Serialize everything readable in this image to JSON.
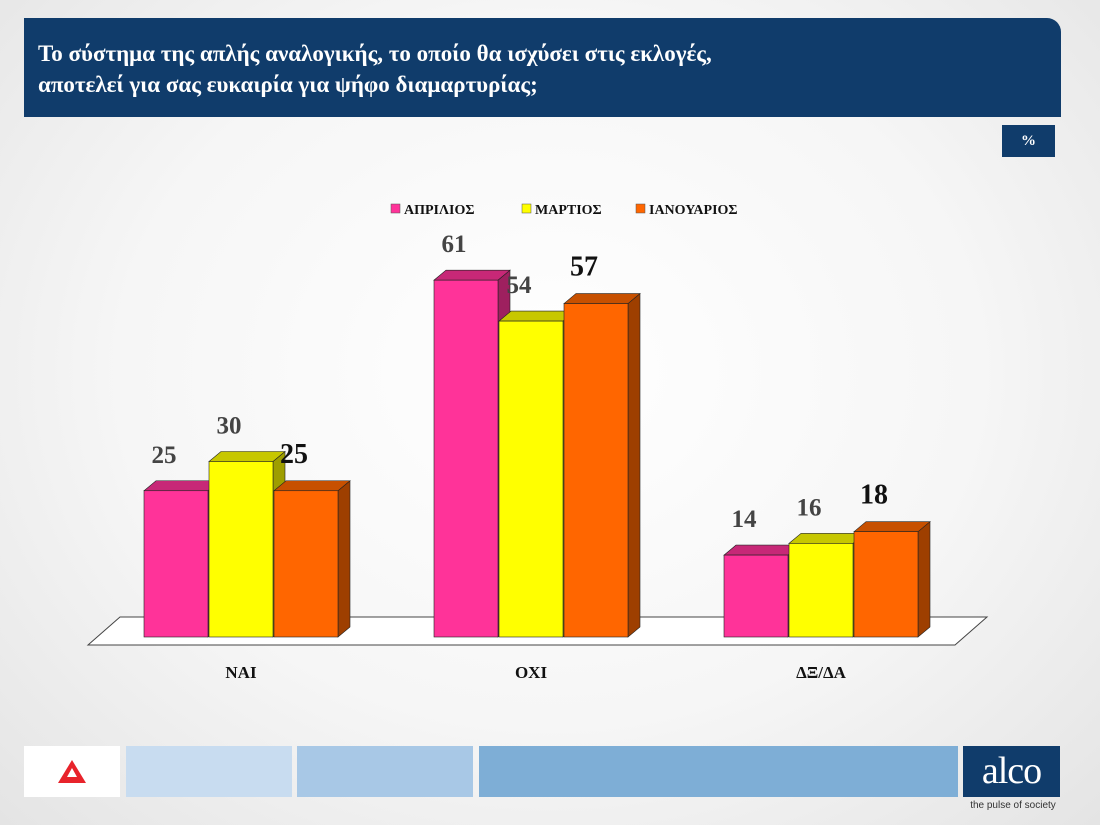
{
  "header": {
    "title_line1": "Το σύστημα της απλής αναλογικής, το οποίο θα ισχύσει στις εκλογές,",
    "title_line2": "αποτελεί για σας ευκαιρία για ψήφο διαμαρτυρίας;",
    "unit": "%"
  },
  "chart_data": {
    "type": "bar",
    "categories": [
      "ΝΑΙ",
      "ΟΧΙ",
      "ΔΞ/ΔΑ"
    ],
    "series": [
      {
        "name": "ΑΠΡΙΛΙΟΣ",
        "values": [
          25,
          61,
          14
        ],
        "color": "#ff3399"
      },
      {
        "name": "ΜΑΡΤΙΟΣ",
        "values": [
          30,
          54,
          16
        ],
        "color": "#ffff00"
      },
      {
        "name": "ΙΑΝΟΥΑΡΙΟΣ",
        "values": [
          25,
          57,
          18
        ],
        "color": "#ff6600"
      }
    ],
    "ylim": [
      0,
      70
    ],
    "legend": "top-center",
    "grid": false,
    "style": "3d"
  },
  "footer": {
    "alco_logo": "alco",
    "alco_tagline": "the pulse of society",
    "colors": [
      "#c8dcf0",
      "#a8c8e6",
      "#7eaed6"
    ]
  }
}
